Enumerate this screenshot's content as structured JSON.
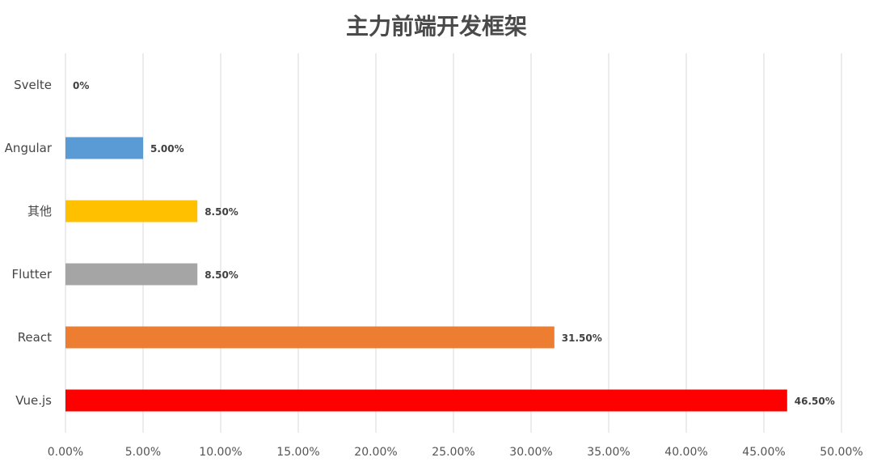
{
  "chart_data": {
    "type": "bar",
    "orientation": "horizontal",
    "title": "主力前端开发框架",
    "categories": [
      "Svelte",
      "Angular",
      "其他",
      "Flutter",
      "React",
      "Vue.js"
    ],
    "values": [
      0,
      5.0,
      8.5,
      8.5,
      31.5,
      46.5
    ],
    "data_labels": [
      "0%",
      "5.00%",
      "8.50%",
      "8.50%",
      "31.50%",
      "46.50%"
    ],
    "colors": [
      "#4472c4",
      "#5b9bd5",
      "#ffc000",
      "#a5a5a5",
      "#ed7d31",
      "#ff0000"
    ],
    "xlim": [
      0,
      50
    ],
    "x_ticks": [
      0,
      5,
      10,
      15,
      20,
      25,
      30,
      35,
      40,
      45,
      50
    ],
    "x_tick_labels": [
      "0.00%",
      "5.00%",
      "10.00%",
      "15.00%",
      "20.00%",
      "25.00%",
      "30.00%",
      "35.00%",
      "40.00%",
      "45.00%",
      "50.00%"
    ],
    "grid": true,
    "legend": "none"
  }
}
